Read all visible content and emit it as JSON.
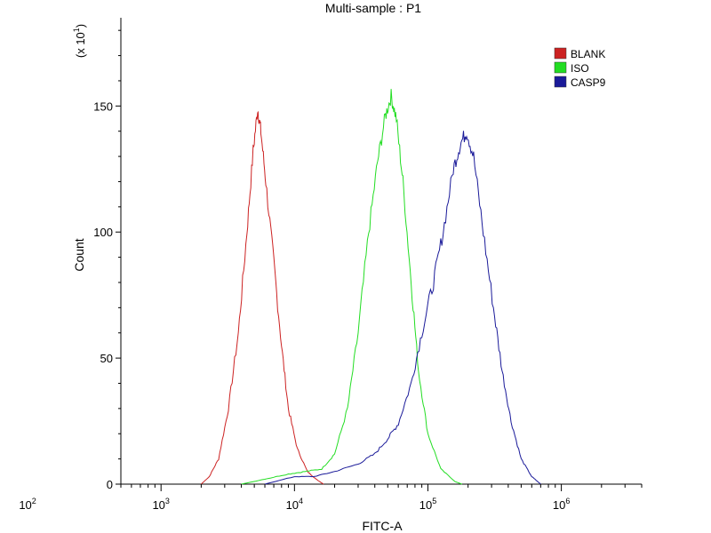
{
  "chart_data": {
    "type": "line",
    "title": "Multi-sample : P1",
    "xlabel": "FITC-A",
    "ylabel": "Count",
    "y_multiplier_label": "(x 10",
    "y_multiplier_exp": "1",
    "x_scale": "log",
    "xlim": [
      500,
      4000000
    ],
    "ylim": [
      0,
      185
    ],
    "x_ticks": [
      {
        "value": 100,
        "base": "10",
        "exp": "2"
      },
      {
        "value": 1000,
        "base": "10",
        "exp": "3"
      },
      {
        "value": 10000,
        "base": "10",
        "exp": "4"
      },
      {
        "value": 100000,
        "base": "10",
        "exp": "5"
      },
      {
        "value": 1000000,
        "base": "10",
        "exp": "6"
      }
    ],
    "y_ticks": [
      0,
      50,
      100,
      150
    ],
    "legend_position": "top-right",
    "series": [
      {
        "name": "BLANK",
        "color": "#cc2222",
        "points": [
          [
            2000,
            0
          ],
          [
            2300,
            3
          ],
          [
            2700,
            10
          ],
          [
            3200,
            30
          ],
          [
            3800,
            60
          ],
          [
            4400,
            100
          ],
          [
            4900,
            132
          ],
          [
            5300,
            149
          ],
          [
            5600,
            140
          ],
          [
            6100,
            120
          ],
          [
            7000,
            88
          ],
          [
            8000,
            55
          ],
          [
            9000,
            30
          ],
          [
            10500,
            14
          ],
          [
            12500,
            5
          ],
          [
            14500,
            2
          ],
          [
            16500,
            0
          ]
        ]
      },
      {
        "name": "ISO",
        "color": "#22dd22",
        "points": [
          [
            4000,
            0
          ],
          [
            6000,
            2
          ],
          [
            9000,
            4
          ],
          [
            12000,
            5
          ],
          [
            16000,
            6
          ],
          [
            20000,
            12
          ],
          [
            25000,
            30
          ],
          [
            30000,
            60
          ],
          [
            36000,
            100
          ],
          [
            42000,
            128
          ],
          [
            48000,
            146
          ],
          [
            53000,
            154
          ],
          [
            58000,
            145
          ],
          [
            65000,
            120
          ],
          [
            75000,
            80
          ],
          [
            85000,
            45
          ],
          [
            100000,
            20
          ],
          [
            125000,
            6
          ],
          [
            160000,
            1
          ],
          [
            180000,
            0
          ]
        ]
      },
      {
        "name": "CASP9",
        "color": "#1a1a99",
        "points": [
          [
            6000,
            0
          ],
          [
            10000,
            3
          ],
          [
            14000,
            3
          ],
          [
            20000,
            5
          ],
          [
            30000,
            8
          ],
          [
            40000,
            12
          ],
          [
            50000,
            18
          ],
          [
            60000,
            24
          ],
          [
            75000,
            40
          ],
          [
            90000,
            60
          ],
          [
            110000,
            80
          ],
          [
            130000,
            100
          ],
          [
            155000,
            125
          ],
          [
            175000,
            135
          ],
          [
            195000,
            140
          ],
          [
            220000,
            130
          ],
          [
            260000,
            100
          ],
          [
            310000,
            70
          ],
          [
            360000,
            45
          ],
          [
            420000,
            25
          ],
          [
            500000,
            10
          ],
          [
            600000,
            3
          ],
          [
            700000,
            0
          ]
        ]
      }
    ]
  }
}
